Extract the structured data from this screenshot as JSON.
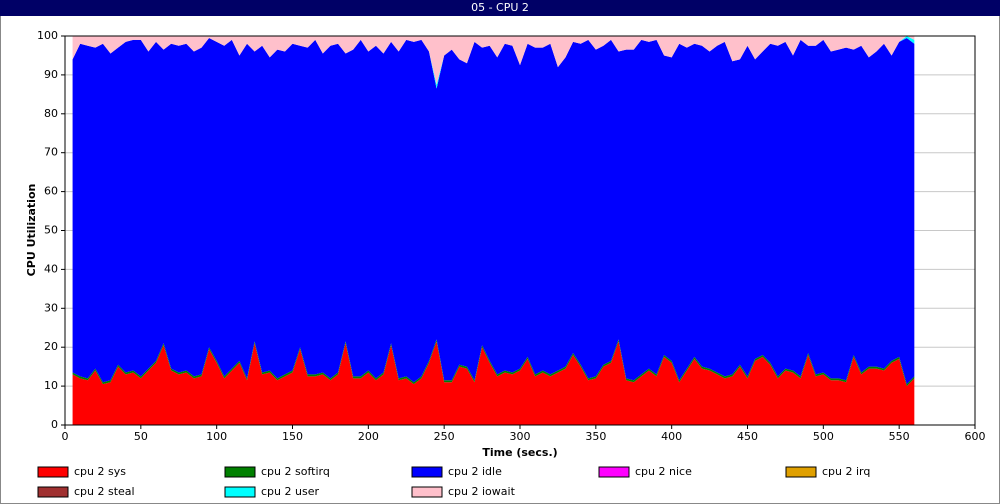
{
  "chart_data": {
    "type": "stacked-area",
    "title": "05 - CPU 2",
    "x_label": "Time (secs.)",
    "y_label": "CPU Utilization",
    "x": [
      5,
      10,
      15,
      20,
      25,
      30,
      35,
      40,
      45,
      50,
      55,
      60,
      65,
      70,
      75,
      80,
      85,
      90,
      95,
      100,
      105,
      110,
      115,
      120,
      125,
      130,
      135,
      140,
      145,
      150,
      155,
      160,
      165,
      170,
      175,
      180,
      185,
      190,
      195,
      200,
      205,
      210,
      215,
      220,
      225,
      230,
      235,
      240,
      245,
      250,
      255,
      260,
      265,
      270,
      275,
      280,
      285,
      290,
      295,
      300,
      305,
      310,
      315,
      320,
      325,
      330,
      335,
      340,
      345,
      350,
      355,
      360,
      365,
      370,
      375,
      380,
      385,
      390,
      395,
      400,
      405,
      410,
      415,
      420,
      425,
      430,
      435,
      440,
      445,
      450,
      455,
      460,
      465,
      470,
      475,
      480,
      485,
      490,
      495,
      500,
      505,
      510,
      515,
      520,
      525,
      530,
      535,
      540,
      545,
      550,
      555,
      560
    ],
    "xlim": [
      0,
      600
    ],
    "xticks": [
      0,
      50,
      100,
      150,
      200,
      250,
      300,
      350,
      400,
      450,
      500,
      550,
      600
    ],
    "ylim": [
      0,
      100
    ],
    "yticks": [
      0,
      10,
      20,
      30,
      40,
      50,
      60,
      70,
      80,
      90,
      100
    ],
    "grid": true,
    "series": [
      {
        "name": "cpu 2 sys",
        "color": "#ff0000",
        "values": [
          13,
          12,
          11.5,
          14,
          10.5,
          11,
          15,
          13,
          13.5,
          12,
          14,
          16,
          20.5,
          14,
          13,
          13.5,
          12,
          12.5,
          19.5,
          16,
          12,
          14,
          16,
          11.5,
          21,
          13,
          13.5,
          11.5,
          12.5,
          13.5,
          19.5,
          12.5,
          12.5,
          13,
          11.5,
          13,
          21,
          12,
          12,
          13.5,
          11.5,
          13,
          20.5,
          11.5,
          12,
          10.5,
          12,
          16,
          21.5,
          11,
          11,
          15,
          14.5,
          11,
          20,
          16,
          12.5,
          13.5,
          13,
          14,
          17,
          12.5,
          13.5,
          12.5,
          13.5,
          14.5,
          18,
          15,
          11.5,
          12,
          15,
          16,
          21.5,
          11.5,
          11,
          12.5,
          14,
          12.5,
          17.5,
          16,
          11,
          14,
          17,
          14.5,
          14,
          13,
          12,
          12.5,
          15,
          12,
          16.5,
          17.5,
          15.5,
          12,
          14,
          13.5,
          12,
          18,
          12.5,
          13,
          11.5,
          11.5,
          11,
          17.5,
          13,
          14.5,
          14.5,
          14,
          16,
          17,
          10,
          12
        ]
      },
      {
        "name": "cpu 2 softirq",
        "color": "#008000",
        "values": [
          0.5,
          0.5,
          0.5,
          0.5,
          0.5,
          0.5,
          0.5,
          0.5,
          0.5,
          0.5,
          0.5,
          0.5,
          0.5,
          0.5,
          0.5,
          0.5,
          0.5,
          0.5,
          0.5,
          0.5,
          0.5,
          0.5,
          0.5,
          0.5,
          0.5,
          0.5,
          0.5,
          0.5,
          0.5,
          0.5,
          0.5,
          0.5,
          0.5,
          0.5,
          0.5,
          0.5,
          0.5,
          0.5,
          0.5,
          0.5,
          0.5,
          0.5,
          0.5,
          0.5,
          0.5,
          0.5,
          0.5,
          0.5,
          0.5,
          0.5,
          0.5,
          0.5,
          0.5,
          0.5,
          0.5,
          0.5,
          0.5,
          0.5,
          0.5,
          0.5,
          0.5,
          0.5,
          0.5,
          0.5,
          0.5,
          0.5,
          0.5,
          0.5,
          0.5,
          0.5,
          0.5,
          0.5,
          0.5,
          0.5,
          0.5,
          0.5,
          0.5,
          0.5,
          0.5,
          0.5,
          0.5,
          0.5,
          0.5,
          0.5,
          0.5,
          0.5,
          0.5,
          0.5,
          0.5,
          0.5,
          0.5,
          0.5,
          0.5,
          0.5,
          0.5,
          0.5,
          0.5,
          0.5,
          0.5,
          0.5,
          0.5,
          0.5,
          0.5,
          0.5,
          0.5,
          0.5,
          0.5,
          0.5,
          0.5,
          0.5,
          0.5,
          0.5
        ]
      },
      {
        "name": "cpu 2 idle",
        "color": "#0000ff",
        "values": [
          80.5,
          85.5,
          85.5,
          82.5,
          87,
          84,
          81.5,
          85,
          85,
          86.5,
          81.5,
          82,
          75.5,
          83.5,
          84,
          84,
          83.5,
          84,
          79.5,
          82,
          85,
          84.5,
          78.5,
          86,
          74.5,
          84,
          80.5,
          84.5,
          83,
          84,
          77.5,
          84,
          86,
          82,
          85.5,
          84.5,
          74,
          84,
          86.5,
          82,
          85.5,
          82,
          77.5,
          84,
          86.5,
          87.5,
          86.5,
          79.5,
          64.5,
          83.5,
          85,
          78.5,
          78,
          87,
          76.5,
          81,
          81.5,
          84,
          84,
          78,
          80.5,
          84,
          83,
          85,
          78,
          79.5,
          80,
          82.5,
          87,
          84,
          82,
          82.5,
          74,
          84.5,
          85,
          86,
          84,
          86,
          77,
          78,
          86.5,
          82.5,
          80.5,
          82.5,
          81.5,
          84,
          86,
          80.5,
          78.5,
          85,
          77,
          78,
          82,
          85,
          84,
          81,
          86.5,
          79,
          84.5,
          85.5,
          84,
          84.5,
          85.5,
          78.5,
          84,
          79.5,
          81,
          83.5,
          78.5,
          81,
          89,
          85.5
        ]
      },
      {
        "name": "cpu 2 nice",
        "color": "#ff00ff",
        "values": [
          0,
          0,
          0,
          0,
          0,
          0,
          0,
          0,
          0,
          0,
          0,
          0,
          0,
          0,
          0,
          0,
          0,
          0,
          0,
          0,
          0,
          0,
          0,
          0,
          0,
          0,
          0,
          0,
          0,
          0,
          0,
          0,
          0,
          0,
          0,
          0,
          0,
          0,
          0,
          0,
          0,
          0,
          0,
          0,
          0,
          0,
          0,
          0,
          0,
          0,
          0,
          0,
          0,
          0,
          0,
          0,
          0,
          0,
          0,
          0,
          0,
          0,
          0,
          0,
          0,
          0,
          0,
          0,
          0,
          0,
          0,
          0,
          0,
          0,
          0,
          0,
          0,
          0,
          0,
          0,
          0,
          0,
          0,
          0,
          0,
          0,
          0,
          0,
          0,
          0,
          0,
          0,
          0,
          0,
          0,
          0,
          0,
          0,
          0,
          0,
          0,
          0,
          0,
          0,
          0,
          0,
          0,
          0,
          0,
          0,
          0,
          0
        ]
      },
      {
        "name": "cpu 2 irq",
        "color": "#e0a000",
        "values": [
          0,
          0,
          0,
          0,
          0,
          0,
          0,
          0,
          0,
          0,
          0,
          0,
          0,
          0,
          0,
          0,
          0,
          0,
          0,
          0,
          0,
          0,
          0,
          0,
          0,
          0,
          0,
          0,
          0,
          0,
          0,
          0,
          0,
          0,
          0,
          0,
          0,
          0,
          0,
          0,
          0,
          0,
          0,
          0,
          0,
          0,
          0,
          0,
          0,
          0,
          0,
          0,
          0,
          0,
          0,
          0,
          0,
          0,
          0,
          0,
          0,
          0,
          0,
          0,
          0,
          0,
          0,
          0,
          0,
          0,
          0,
          0,
          0,
          0,
          0,
          0,
          0,
          0,
          0,
          0,
          0,
          0,
          0,
          0,
          0,
          0,
          0,
          0,
          0,
          0,
          0,
          0,
          0,
          0,
          0,
          0,
          0,
          0,
          0,
          0,
          0,
          0,
          0,
          0,
          0,
          0,
          0,
          0,
          0,
          0,
          0,
          0
        ]
      },
      {
        "name": "cpu 2 steal",
        "color": "#a03030",
        "values": [
          0,
          0,
          0,
          0,
          0,
          0,
          0,
          0,
          0,
          0,
          0,
          0,
          0,
          0,
          0,
          0,
          0,
          0,
          0,
          0,
          0,
          0,
          0,
          0,
          0,
          0,
          0,
          0,
          0,
          0,
          0,
          0,
          0,
          0,
          0,
          0,
          0,
          0,
          0,
          0,
          0,
          0,
          0,
          0,
          0,
          0,
          0,
          0,
          0,
          0,
          0,
          0,
          0,
          0,
          0,
          0,
          0,
          0,
          0,
          0,
          0,
          0,
          0,
          0,
          0,
          0,
          0,
          0,
          0,
          0,
          0,
          0,
          0,
          0,
          0,
          0,
          0,
          0,
          0,
          0,
          0,
          0,
          0,
          0,
          0,
          0,
          0,
          0,
          0,
          0,
          0,
          0,
          0,
          0,
          0,
          0,
          0,
          0,
          0,
          0,
          0,
          0,
          0,
          0,
          0,
          0,
          0,
          0,
          0,
          0,
          0,
          0
        ]
      },
      {
        "name": "cpu 2 user",
        "color": "#00ffff",
        "values": [
          0,
          0,
          0,
          0,
          0,
          0,
          0,
          0,
          0,
          0,
          0,
          0,
          0,
          0,
          0,
          0,
          0,
          0,
          0,
          0,
          0,
          0,
          0,
          0,
          0,
          0,
          0,
          0,
          0,
          0,
          0,
          0,
          0,
          0,
          0,
          0,
          0,
          0,
          0,
          0,
          0,
          0,
          0,
          0,
          0,
          0,
          0,
          0,
          1,
          0,
          0,
          0,
          0,
          0,
          0,
          0,
          0,
          0,
          0,
          0,
          0,
          0,
          0,
          0,
          0,
          0,
          0,
          0,
          0,
          0,
          0,
          0,
          0,
          0,
          0,
          0,
          0,
          0,
          0,
          0,
          0,
          0,
          0,
          0,
          0,
          0,
          0,
          0,
          0,
          0,
          0,
          0,
          0,
          0,
          0,
          0,
          0,
          0,
          0,
          0,
          0,
          0,
          0,
          0,
          0,
          0,
          0,
          0,
          0,
          0,
          0.5,
          1
        ]
      },
      {
        "name": "cpu 2 iowait",
        "color": "#ffc0cb",
        "values": [
          6,
          2,
          2.5,
          3,
          2,
          4.5,
          3,
          1.5,
          1,
          1,
          4,
          1.5,
          3.5,
          2,
          2.5,
          2,
          4,
          3,
          0.5,
          1.5,
          2.5,
          1,
          5,
          2,
          4,
          2.5,
          5.5,
          3.5,
          4,
          2,
          2.5,
          3,
          1,
          4.5,
          2.5,
          2,
          4.5,
          3.5,
          1,
          4,
          2.5,
          4.5,
          1.5,
          4,
          1,
          1.5,
          1,
          4,
          12.5,
          5,
          3.5,
          6,
          7,
          1.5,
          3,
          2.5,
          5.5,
          2,
          2.5,
          7.5,
          2,
          3,
          3,
          2,
          8,
          5.5,
          1.5,
          2,
          1,
          3.5,
          2.5,
          1,
          4,
          3.5,
          3.5,
          1,
          1.5,
          1,
          5,
          5.5,
          2,
          3,
          2,
          2.5,
          4,
          2.5,
          1.5,
          6.5,
          6,
          2.5,
          6,
          4,
          2,
          2.5,
          1.5,
          5,
          1,
          2.5,
          2.5,
          1,
          4,
          3.5,
          3,
          3.5,
          2.5,
          5.5,
          4,
          2,
          5,
          1.5,
          0,
          1
        ]
      }
    ]
  }
}
